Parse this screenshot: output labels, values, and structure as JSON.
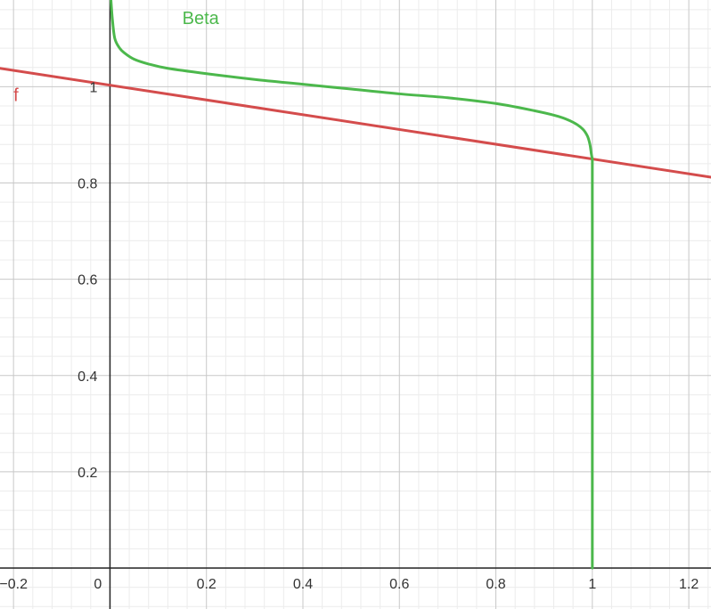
{
  "chart_data": {
    "type": "line",
    "grid": true,
    "xlim": [
      -0.228,
      1.246
    ],
    "ylim": [
      -0.085,
      1.18
    ],
    "x_ticks": [
      {
        "value": -0.2,
        "label": "−0.2"
      },
      {
        "value": 0,
        "label": "0"
      },
      {
        "value": 0.2,
        "label": "0.2"
      },
      {
        "value": 0.4,
        "label": "0.4"
      },
      {
        "value": 0.6,
        "label": "0.6"
      },
      {
        "value": 0.8,
        "label": "0.8"
      },
      {
        "value": 1,
        "label": "1"
      },
      {
        "value": 1.2,
        "label": "1.2"
      }
    ],
    "y_ticks": [
      {
        "value": 0.2,
        "label": "0.2"
      },
      {
        "value": 0.4,
        "label": "0.4"
      },
      {
        "value": 0.6,
        "label": "0.6"
      },
      {
        "value": 0.8,
        "label": "0.8"
      },
      {
        "value": 1,
        "label": "1"
      }
    ],
    "series": [
      {
        "name": "f",
        "color": "#d44c4c",
        "label_at": [
          -0.2,
          0.97
        ],
        "x": [
          -0.228,
          1.246
        ],
        "y": [
          1.038,
          0.812
        ]
      },
      {
        "name": "Beta",
        "color": "#4cb84c",
        "label_at": [
          0.15,
          1.13
        ],
        "x": [
          0.002,
          0.005,
          0.01,
          0.02,
          0.03,
          0.05,
          0.08,
          0.12,
          0.2,
          0.3,
          0.4,
          0.5,
          0.6,
          0.7,
          0.8,
          0.88,
          0.93,
          0.96,
          0.98,
          0.99,
          0.995,
          0.998,
          1.0,
          1.0
        ],
        "y": [
          1.18,
          1.14,
          1.1,
          1.08,
          1.07,
          1.057,
          1.047,
          1.038,
          1.027,
          1.015,
          1.005,
          0.995,
          0.985,
          0.977,
          0.965,
          0.95,
          0.938,
          0.926,
          0.912,
          0.897,
          0.88,
          0.86,
          0.85,
          0.0
        ]
      }
    ]
  }
}
